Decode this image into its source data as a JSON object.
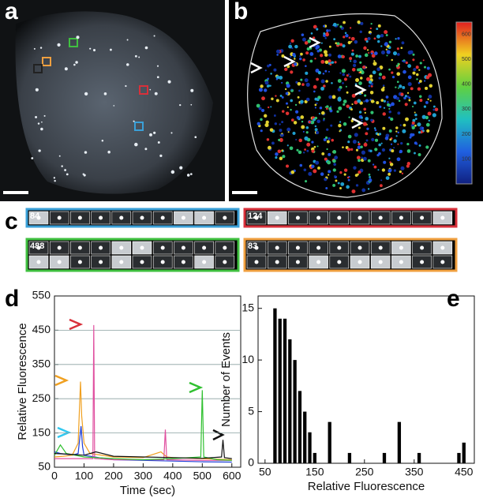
{
  "panels": {
    "a": "a",
    "b": "b",
    "c": "c",
    "d": "d",
    "e": "e"
  },
  "colorbar_ticks": [
    600,
    500,
    400,
    300,
    200,
    100
  ],
  "montages": [
    {
      "label": "84",
      "color": "#3aa0d8"
    },
    {
      "label": "124",
      "color": "#d8303a"
    },
    {
      "label": "488",
      "color": "#40c040"
    },
    {
      "label": "83",
      "color": "#f0a040"
    }
  ],
  "chart_data": [
    {
      "type": "line",
      "xlabel": "Time (sec)",
      "ylabel": "Relative Fluorescence",
      "xlim": [
        0,
        630
      ],
      "ylim": [
        50,
        550
      ],
      "xticks": [
        0,
        100,
        200,
        300,
        400,
        500,
        600
      ],
      "yticks": [
        50,
        150,
        250,
        350,
        450,
        550
      ],
      "grid": true,
      "series": [
        {
          "name": null,
          "color": "#1f3fd8",
          "x": [
            0,
            20,
            40,
            60,
            80,
            90,
            95,
            100,
            150,
            200,
            300,
            400,
            500,
            600
          ],
          "values": [
            95,
            90,
            88,
            85,
            90,
            170,
            110,
            85,
            78,
            72,
            70,
            68,
            66,
            65
          ]
        },
        {
          "name": null,
          "color": "#f0a020",
          "x": [
            0,
            30,
            60,
            80,
            88,
            92,
            100,
            120,
            200,
            300,
            360,
            380,
            400,
            500,
            600
          ],
          "values": [
            80,
            82,
            85,
            120,
            300,
            200,
            120,
            90,
            80,
            78,
            95,
            80,
            78,
            75,
            72
          ]
        },
        {
          "name": null,
          "color": "#e050a0",
          "x": [
            0,
            100,
            130,
            133,
            136,
            200,
            370,
            375,
            380,
            500,
            600
          ],
          "values": [
            75,
            75,
            75,
            465,
            75,
            72,
            72,
            160,
            72,
            70,
            70
          ]
        },
        {
          "name": null,
          "color": "#30c030",
          "x": [
            0,
            20,
            40,
            100,
            200,
            300,
            400,
            495,
            500,
            505,
            550,
            600
          ],
          "values": [
            85,
            115,
            90,
            80,
            75,
            72,
            75,
            80,
            275,
            80,
            72,
            70
          ]
        },
        {
          "name": null,
          "color": "#111111",
          "x": [
            0,
            50,
            100,
            140,
            200,
            300,
            400,
            500,
            565,
            570,
            575,
            600
          ],
          "values": [
            90,
            88,
            85,
            95,
            82,
            80,
            78,
            76,
            80,
            130,
            78,
            75
          ]
        }
      ]
    },
    {
      "type": "histogram",
      "xlabel": "Relative Fluorescence",
      "ylabel": "Number of Events",
      "xlim": [
        36,
        471
      ],
      "ylim": [
        0,
        16.2
      ],
      "xticks": [
        50,
        150,
        250,
        350,
        450
      ],
      "yticks": [
        0,
        5,
        10,
        15
      ],
      "color": "#000000",
      "bins": [
        65,
        75,
        85,
        95,
        105,
        115,
        125,
        135,
        145,
        155,
        165,
        175,
        185,
        195,
        205,
        215,
        225,
        235,
        245,
        255,
        265,
        275,
        285,
        295,
        305,
        315,
        325,
        335,
        345,
        355,
        365,
        375,
        385,
        395,
        405,
        415,
        425,
        435,
        445,
        455
      ],
      "counts": [
        15,
        14,
        14,
        12,
        10,
        7,
        5,
        3,
        1,
        0,
        0,
        4,
        0,
        0,
        0,
        1,
        0,
        0,
        0,
        0,
        0,
        0,
        1,
        0,
        0,
        4,
        0,
        0,
        0,
        1,
        0,
        0,
        0,
        0,
        0,
        0,
        0,
        1,
        2
      ]
    }
  ]
}
